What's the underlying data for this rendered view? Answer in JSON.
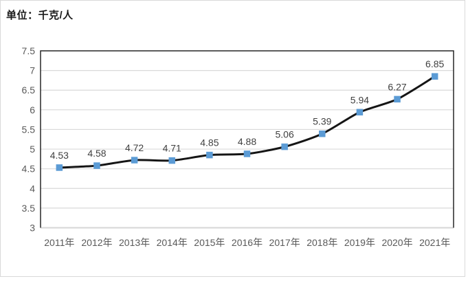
{
  "unit_label": "单位：千克/人",
  "chart_data": {
    "type": "line",
    "title": "单位：千克/人",
    "unit": "千克/人",
    "categories": [
      "2011年",
      "2012年",
      "2013年",
      "2014年",
      "2015年",
      "2016年",
      "2017年",
      "2018年",
      "2019年",
      "2020年",
      "2021年"
    ],
    "values": [
      4.53,
      4.58,
      4.72,
      4.71,
      4.85,
      4.88,
      5.06,
      5.39,
      5.94,
      6.27,
      6.85
    ],
    "data_labels": [
      "4.53",
      "4.58",
      "4.72",
      "4.71",
      "4.85",
      "4.88",
      "5.06",
      "5.39",
      "5.94",
      "6.27",
      "6.85"
    ],
    "xlabel": "",
    "ylabel": "",
    "ylim": [
      3,
      7.5
    ],
    "ytick_step": 0.5,
    "ytick_labels": [
      "3",
      "3.5",
      "4",
      "4.5",
      "5",
      "5.5",
      "6",
      "6.5",
      "7",
      "7.5"
    ],
    "grid": true,
    "legend": "none",
    "marker_shape": "square",
    "colors": {
      "line": "#151515",
      "marker": "#5B9BD5",
      "gridline": "#D9D9D9",
      "plot_border": "#262626",
      "axis_line": "#D6D6D6",
      "tick_label": "#595959",
      "data_label": "#3f3f3f",
      "title": "#1a1a1a",
      "frame_border": "#D9D9D9",
      "background": "#FFFFFF"
    }
  }
}
